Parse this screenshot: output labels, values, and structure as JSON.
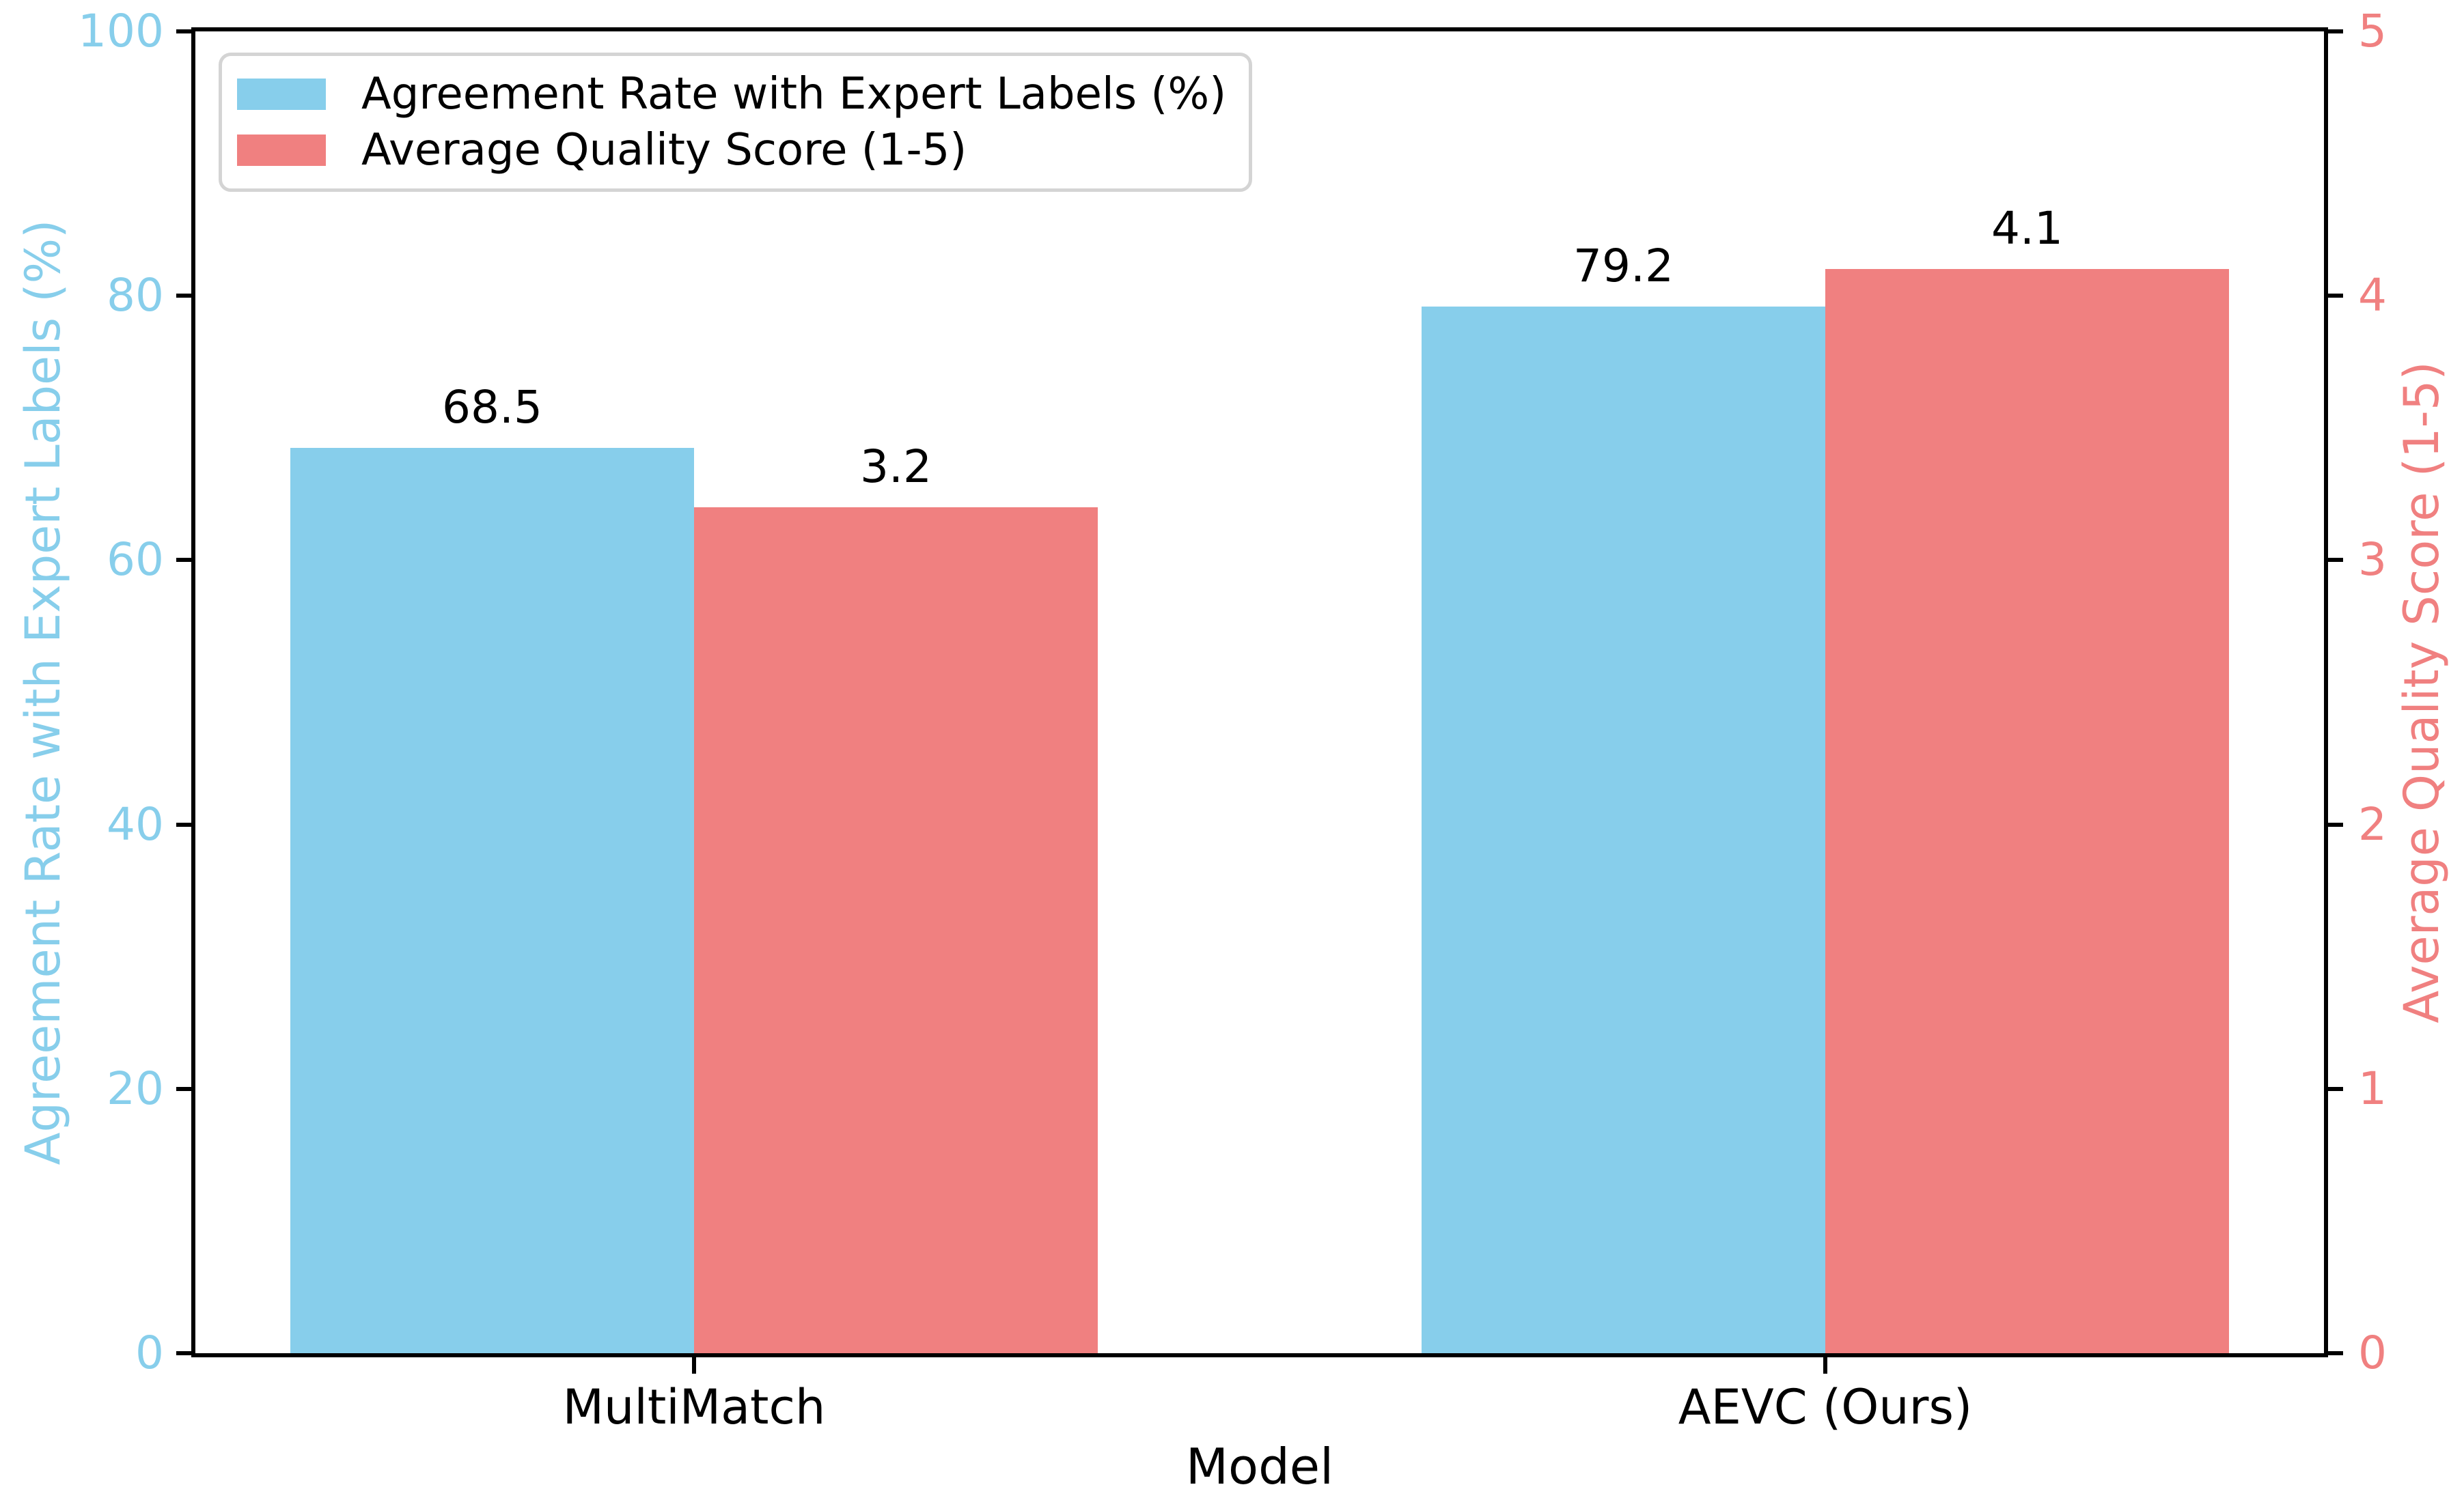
{
  "figure": {
    "background_color": "#ffffff"
  },
  "chart_data": {
    "type": "bar",
    "title": "",
    "xlabel": "Model",
    "categories": [
      "MultiMatch",
      "AEVC (Ours)"
    ],
    "series": [
      {
        "name": "Agreement Rate with Expert Labels (%)",
        "axis": "left",
        "color": "#87CEEB",
        "values": [
          68.5,
          79.2
        ],
        "bar_labels": [
          "68.5",
          "79.2"
        ]
      },
      {
        "name": "Average Quality Score (1-5)",
        "axis": "right",
        "color": "#F08080",
        "values": [
          3.2,
          4.1
        ],
        "bar_labels": [
          "3.2",
          "4.1"
        ]
      }
    ],
    "left_axis": {
      "label": "Agreement Rate with Expert Labels (%)",
      "color": "#87CEEB",
      "min": 0,
      "max": 100,
      "ticks": [
        0,
        20,
        40,
        60,
        80,
        100
      ]
    },
    "right_axis": {
      "label": "Average Quality Score (1-5)",
      "color": "#F08080",
      "min": 0,
      "max": 5,
      "ticks": [
        0,
        1,
        2,
        3,
        4,
        5
      ]
    },
    "legend": {
      "position": "upper-left",
      "entries": [
        {
          "label": "Agreement Rate with Expert Labels (%)",
          "color": "#87CEEB"
        },
        {
          "label": "Average Quality Score (1-5)",
          "color": "#F08080"
        }
      ]
    },
    "grid": false,
    "spine_color": "#000000",
    "tick_color": "#000000",
    "value_label_color": "#000000"
  }
}
